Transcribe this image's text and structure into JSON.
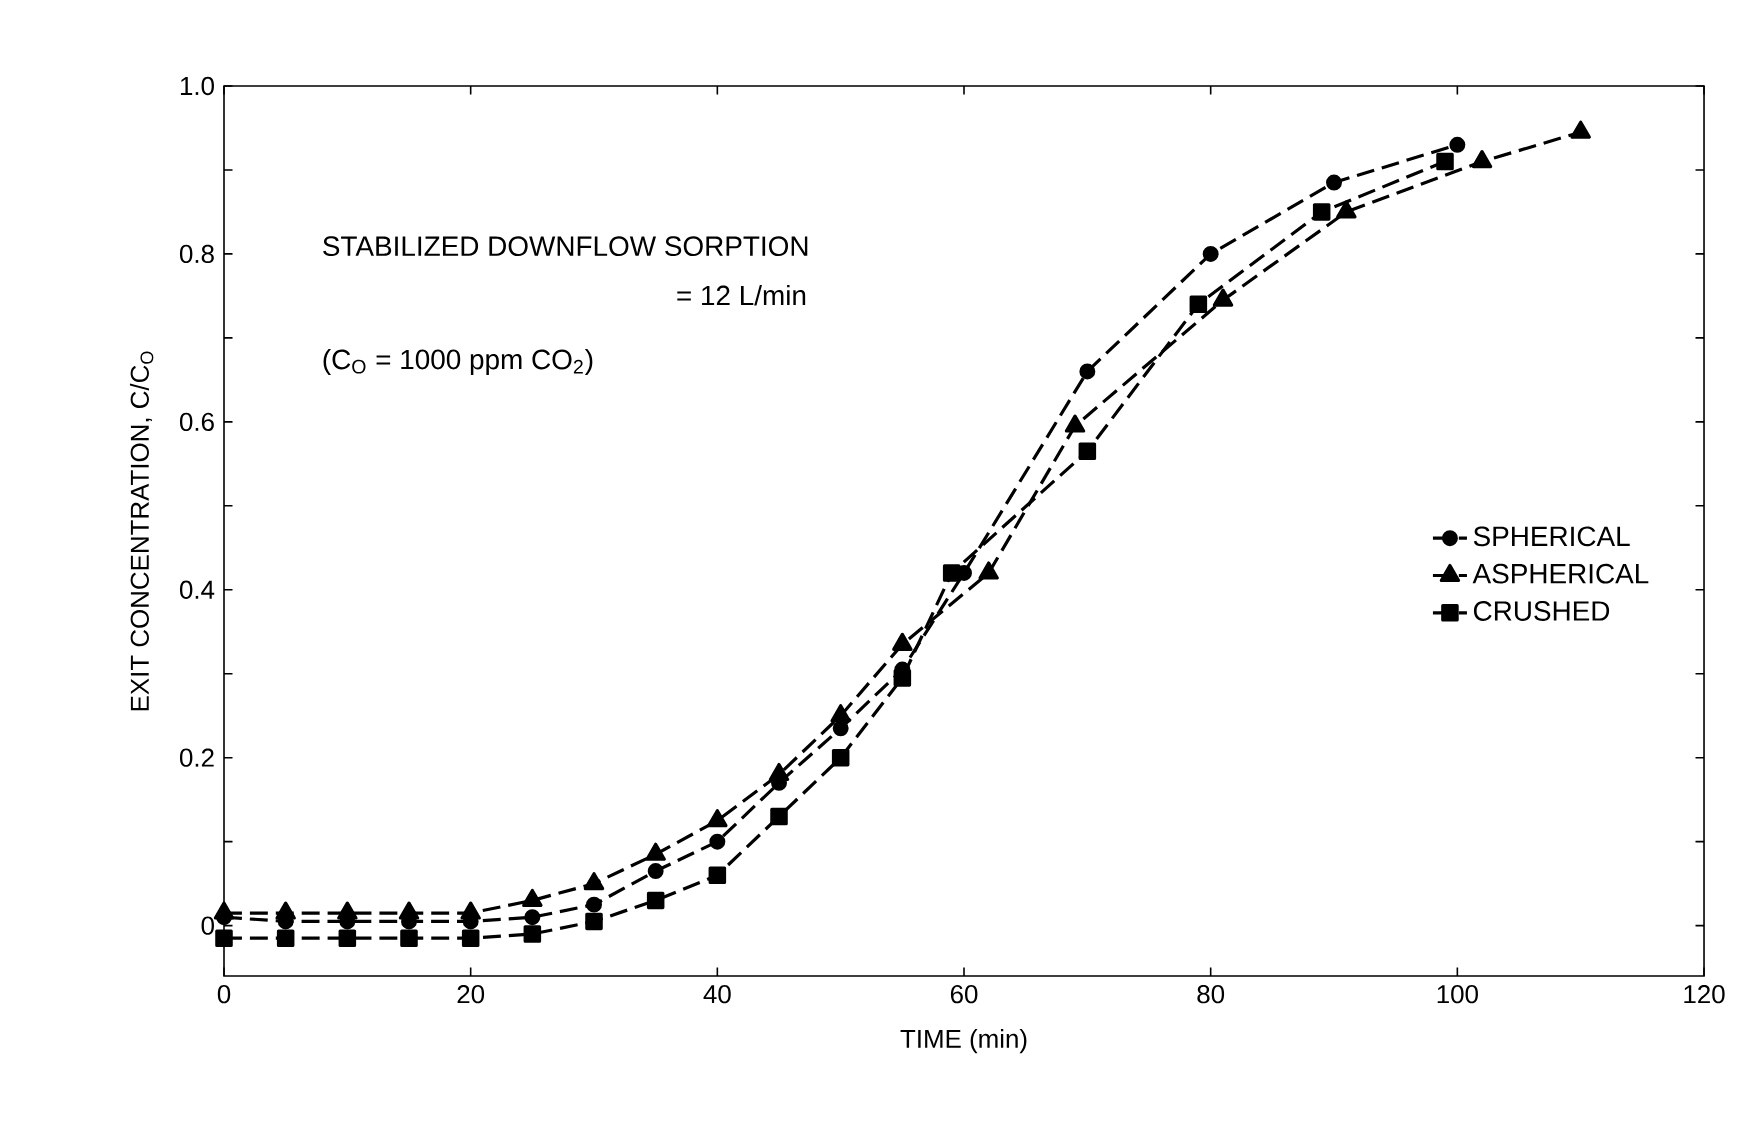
{
  "chart_data": {
    "type": "line",
    "xlabel": "TIME (min)",
    "ylabel": "EXIT CONCENTRATION, C/C$_{O}$",
    "annotations": [
      "STABILIZED DOWNFLOW SORPTION",
      "= 12 L/min",
      "(C$_{O}$ = 1000 ppm CO$_{2}$)"
    ],
    "series": [
      {
        "name": "SPHERICAL",
        "color": "#000000",
        "marker": "circle",
        "x": [
          0,
          5,
          10,
          15,
          20,
          25,
          30,
          35,
          40,
          45,
          50,
          55,
          60,
          70,
          80,
          90,
          100
        ],
        "values": [
          0.01,
          0.005,
          0.005,
          0.005,
          0.005,
          0.01,
          0.025,
          0.065,
          0.1,
          0.17,
          0.235,
          0.305,
          0.42,
          0.66,
          0.8,
          0.885,
          0.93
        ]
      },
      {
        "name": "ASPHERICAL",
        "color": "#000000",
        "marker": "triangle",
        "x": [
          0,
          5,
          10,
          15,
          20,
          25,
          30,
          35,
          40,
          45,
          50,
          55,
          62,
          69,
          81,
          91,
          102,
          110
        ],
        "values": [
          0.015,
          0.015,
          0.015,
          0.015,
          0.015,
          0.03,
          0.05,
          0.085,
          0.125,
          0.18,
          0.25,
          0.335,
          0.42,
          0.595,
          0.745,
          0.85,
          0.91,
          0.945
        ]
      },
      {
        "name": "CRUSHED",
        "color": "#000000",
        "marker": "square",
        "x": [
          0,
          5,
          10,
          15,
          20,
          25,
          30,
          35,
          40,
          45,
          50,
          55,
          59,
          70,
          79,
          89,
          99
        ],
        "values": [
          -0.015,
          -0.015,
          -0.015,
          -0.015,
          -0.015,
          -0.01,
          0.005,
          0.03,
          0.06,
          0.13,
          0.2,
          0.295,
          0.42,
          0.565,
          0.74,
          0.85,
          0.91
        ]
      }
    ],
    "line_style": "dashed",
    "legend": "right",
    "xlim": [
      0,
      120
    ],
    "xticks": [
      0,
      20,
      40,
      60,
      80,
      100,
      120
    ],
    "ylim": [
      -0.06,
      1.0
    ],
    "yticks": [
      0,
      {
        "value": 0.1,
        "label": null
      },
      0.2,
      {
        "value": 0.3,
        "label": null
      },
      0.4,
      {
        "value": 0.5,
        "label": null
      },
      0.6,
      {
        "value": 0.7,
        "label": null
      },
      0.8,
      {
        "value": 0.9,
        "label": null
      },
      {
        "value": 1.0,
        "label": "1.0"
      }
    ]
  }
}
